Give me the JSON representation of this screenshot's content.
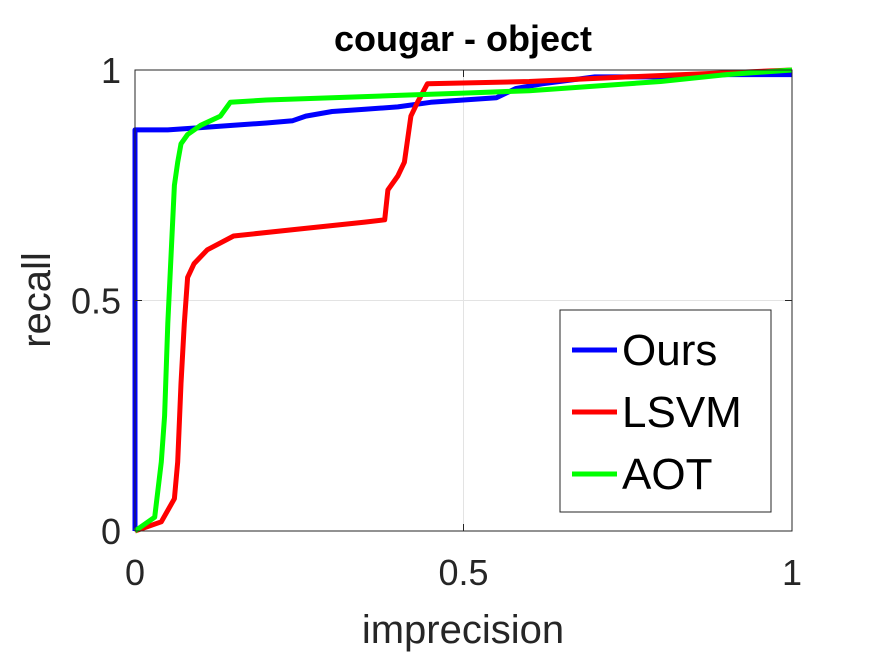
{
  "chart_data": {
    "type": "line",
    "title": "cougar - object",
    "xlabel": "imprecision",
    "ylabel": "recall",
    "xlim": [
      0,
      1
    ],
    "ylim": [
      0,
      1
    ],
    "xticks": [
      0,
      0.5,
      1
    ],
    "xtick_labels": [
      "0",
      "0.5",
      "1"
    ],
    "yticks": [
      0,
      0.5,
      1
    ],
    "ytick_labels": [
      "0",
      "0.5",
      "1"
    ],
    "grid": true,
    "legend_position": "bottom-right",
    "series": [
      {
        "name": "Ours",
        "color": "#0000ff",
        "points": [
          [
            0,
            0
          ],
          [
            0,
            0.87
          ],
          [
            0.05,
            0.87
          ],
          [
            0.1,
            0.875
          ],
          [
            0.15,
            0.88
          ],
          [
            0.2,
            0.885
          ],
          [
            0.24,
            0.89
          ],
          [
            0.26,
            0.9
          ],
          [
            0.3,
            0.91
          ],
          [
            0.35,
            0.915
          ],
          [
            0.4,
            0.92
          ],
          [
            0.45,
            0.93
          ],
          [
            0.5,
            0.935
          ],
          [
            0.55,
            0.94
          ],
          [
            0.58,
            0.96
          ],
          [
            0.62,
            0.97
          ],
          [
            0.7,
            0.985
          ],
          [
            0.8,
            0.985
          ],
          [
            0.9,
            0.99
          ],
          [
            1,
            0.99
          ]
        ]
      },
      {
        "name": "LSVM",
        "color": "#ff0000",
        "points": [
          [
            0,
            0
          ],
          [
            0.04,
            0.02
          ],
          [
            0.06,
            0.07
          ],
          [
            0.065,
            0.15
          ],
          [
            0.07,
            0.32
          ],
          [
            0.075,
            0.45
          ],
          [
            0.08,
            0.55
          ],
          [
            0.09,
            0.58
          ],
          [
            0.11,
            0.61
          ],
          [
            0.15,
            0.64
          ],
          [
            0.25,
            0.655
          ],
          [
            0.35,
            0.67
          ],
          [
            0.38,
            0.675
          ],
          [
            0.385,
            0.74
          ],
          [
            0.4,
            0.77
          ],
          [
            0.41,
            0.8
          ],
          [
            0.42,
            0.9
          ],
          [
            0.43,
            0.93
          ],
          [
            0.445,
            0.97
          ],
          [
            0.6,
            0.975
          ],
          [
            0.75,
            0.985
          ],
          [
            1,
            1.0
          ]
        ]
      },
      {
        "name": "AOT",
        "color": "#00ff00",
        "points": [
          [
            0,
            0
          ],
          [
            0.03,
            0.03
          ],
          [
            0.04,
            0.15
          ],
          [
            0.045,
            0.25
          ],
          [
            0.05,
            0.45
          ],
          [
            0.055,
            0.6
          ],
          [
            0.06,
            0.75
          ],
          [
            0.065,
            0.8
          ],
          [
            0.07,
            0.84
          ],
          [
            0.08,
            0.86
          ],
          [
            0.1,
            0.88
          ],
          [
            0.13,
            0.9
          ],
          [
            0.145,
            0.93
          ],
          [
            0.2,
            0.935
          ],
          [
            0.3,
            0.94
          ],
          [
            0.4,
            0.945
          ],
          [
            0.5,
            0.95
          ],
          [
            0.6,
            0.955
          ],
          [
            0.7,
            0.965
          ],
          [
            0.8,
            0.975
          ],
          [
            0.9,
            0.99
          ],
          [
            1,
            1.0
          ]
        ]
      }
    ]
  }
}
